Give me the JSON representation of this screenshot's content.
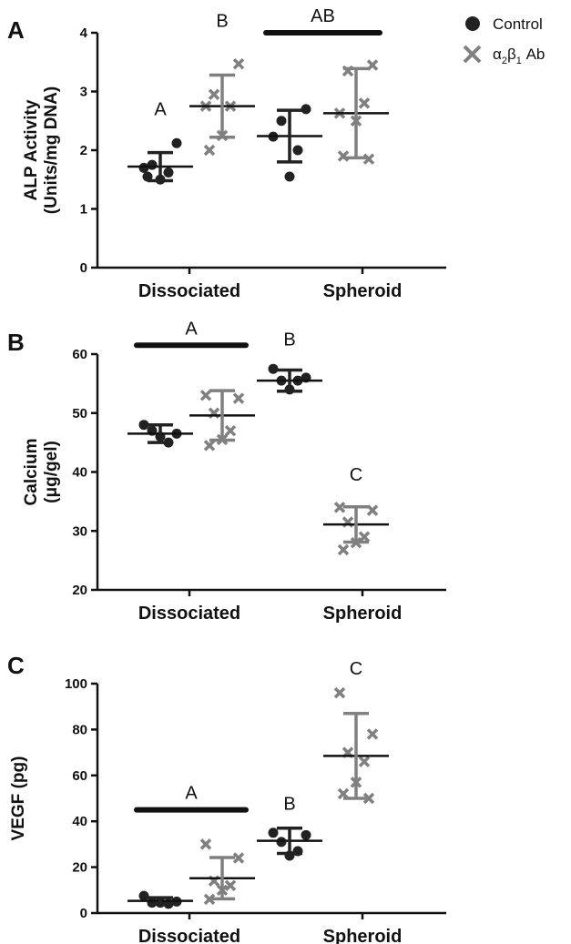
{
  "legend": {
    "control_label": "Control",
    "ab_label_main": "α",
    "ab_sub1": "2",
    "ab_beta": "β",
    "ab_sub2": "1",
    "ab_suffix": " Ab",
    "colors": {
      "control": "#222222",
      "ab": "#808080"
    }
  },
  "chart_data": [
    {
      "panel": "A",
      "type": "scatter",
      "ylabel_line1": "ALP Activity",
      "ylabel_line2": "(Units/mg DNA)",
      "categories": [
        "Dissociated",
        "Spheroid"
      ],
      "ylim": [
        0,
        4
      ],
      "yticks": [
        "0",
        "1",
        "2",
        "3",
        "4"
      ],
      "series": [
        {
          "name": "Control",
          "points": [
            [
              1.7,
              2.12,
              1.75,
              1.62,
              1.5,
              1.55
            ],
            [
              2.23,
              2.7,
              2.5,
              2.0,
              1.55
            ]
          ],
          "mean": [
            1.72,
            2.24
          ],
          "sd": [
            0.24,
            0.44
          ]
        },
        {
          "name": "α2β1 Ab",
          "points": [
            [
              2.75,
              3.47,
              2.95,
              2.75,
              2.25,
              2.0
            ],
            [
              2.63,
              3.45,
              3.35,
              2.8,
              2.5,
              1.9,
              1.85
            ]
          ],
          "mean": [
            2.75,
            2.63
          ],
          "sd": [
            0.53,
            0.76
          ]
        }
      ],
      "significance": [
        {
          "label": "A",
          "groups": [
            "Dissociated-Control"
          ],
          "y": 2.6
        },
        {
          "label": "B",
          "groups": [
            "Dissociated-α2β1 Ab"
          ],
          "y": 4.1
        },
        {
          "label": "AB",
          "groups": [
            "Spheroid-Control",
            "Spheroid-α2β1 Ab"
          ],
          "y": 4.0,
          "bar": true
        }
      ]
    },
    {
      "panel": "B",
      "type": "scatter",
      "ylabel_line1": "Calcium",
      "ylabel_line2": "(μg/gel)",
      "categories": [
        "Dissociated",
        "Spheroid"
      ],
      "ylim": [
        20,
        60
      ],
      "yticks": [
        "20",
        "30",
        "40",
        "50",
        "60"
      ],
      "series": [
        {
          "name": "Control",
          "points": [
            [
              48,
              46.5,
              47,
              45,
              46
            ],
            [
              57.5,
              56,
              55.5,
              55.5,
              54
            ]
          ],
          "mean": [
            46.5,
            55.5
          ],
          "sd": [
            1.5,
            1.8
          ]
        },
        {
          "name": "α2β1 Ab",
          "points": [
            [
              53,
              52.5,
              50,
              47,
              45.5,
              44.5
            ],
            [
              34,
              33.5,
              31.5,
              29,
              28,
              26.8
            ]
          ],
          "mean": [
            49.6,
            31.1
          ],
          "sd": [
            4.2,
            3.0
          ]
        }
      ],
      "significance": [
        {
          "label": "A",
          "groups": [
            "Dissociated-Control",
            "Dissociated-α2β1 Ab"
          ],
          "y": 61.5,
          "bar": true
        },
        {
          "label": "B",
          "groups": [
            "Spheroid-Control"
          ],
          "y": 61.5
        },
        {
          "label": "C",
          "groups": [
            "Spheroid-α2β1 Ab"
          ],
          "y": 38.5
        }
      ]
    },
    {
      "panel": "C",
      "type": "scatter",
      "ylabel_line1": "VEGF (pg)",
      "ylabel_line2": "",
      "categories": [
        "Dissociated",
        "Spheroid"
      ],
      "ylim": [
        0,
        100
      ],
      "yticks": [
        "0",
        "20",
        "40",
        "60",
        "80",
        "100"
      ],
      "series": [
        {
          "name": "Control",
          "points": [
            [
              7.5,
              5,
              4.5,
              4,
              4.5
            ],
            [
              35,
              34,
              31,
              27,
              25
            ]
          ],
          "mean": [
            5.3,
            31.5
          ],
          "sd": [
            1.4,
            5.5
          ]
        },
        {
          "name": "α2β1 Ab",
          "points": [
            [
              30,
              24,
              14,
              12,
              10,
              6
            ],
            [
              96,
              78,
              70,
              66,
              57,
              52,
              50
            ]
          ],
          "mean": [
            15.2,
            68.5
          ],
          "sd": [
            9.0,
            18.5
          ]
        }
      ],
      "significance": [
        {
          "label": "A",
          "groups": [
            "Dissociated-Control",
            "Dissociated-α2β1 Ab"
          ],
          "y": 45,
          "bar": true
        },
        {
          "label": "B",
          "groups": [
            "Spheroid-Control"
          ],
          "y": 45
        },
        {
          "label": "C",
          "groups": [
            "Spheroid-α2β1 Ab"
          ],
          "y": 104
        }
      ]
    }
  ]
}
